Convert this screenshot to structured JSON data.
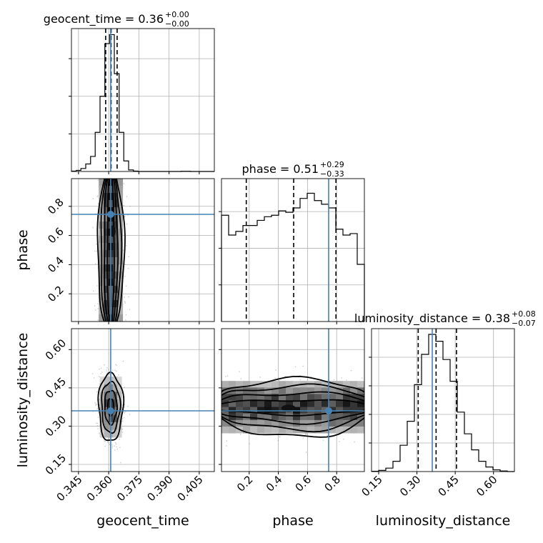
{
  "chart_data": {
    "type": "corner",
    "parameters": [
      "geocent_time",
      "phase",
      "luminosity_distance"
    ],
    "truths": {
      "geocent_time": 0.361,
      "phase": 0.745,
      "luminosity_distance": 0.36
    },
    "titles": [
      {
        "param": "geocent_time",
        "text": "geocent_time = 0.36",
        "sup": "+0.00",
        "sub": "−0.00"
      },
      {
        "param": "phase",
        "text": "phase = 0.51",
        "sup": "+0.29",
        "sub": "−0.33"
      },
      {
        "param": "luminosity_distance",
        "text": "luminosity_distance = 0.38",
        "sup": "+0.08",
        "sub": "−0.07"
      }
    ],
    "axes": {
      "geocent_time": {
        "range": [
          0.3415,
          0.4125
        ],
        "ticks": [
          "0.345",
          "0.360",
          "0.375",
          "0.390",
          "0.405"
        ]
      },
      "phase": {
        "range": [
          0.01,
          0.99
        ],
        "ticks": [
          "0.2",
          "0.4",
          "0.6",
          "0.8"
        ]
      },
      "luminosity_distance": {
        "range": [
          0.122,
          0.682
        ],
        "ticks": [
          "0.15",
          "0.30",
          "0.45",
          "0.60"
        ]
      }
    },
    "histograms": {
      "geocent_time": {
        "quantiles": [
          0.3585,
          0.3612,
          0.3642
        ],
        "edges": [
          0.3415,
          0.3439,
          0.3462,
          0.3486,
          0.351,
          0.3533,
          0.3557,
          0.3581,
          0.3604,
          0.3628,
          0.3652,
          0.3675,
          0.3699,
          0.3723,
          0.3746,
          0.377,
          0.3794,
          0.3817,
          0.3841,
          0.3865,
          0.3888,
          0.3912,
          0.3936,
          0.3959,
          0.3983,
          0.4007,
          0.403,
          0.4054,
          0.4078,
          0.4101,
          0.4125
        ],
        "counts": [
          0.5,
          1.5,
          4,
          10,
          20,
          52,
          100,
          170,
          182,
          130,
          52,
          14,
          2,
          0.5,
          0,
          0,
          0,
          0,
          0,
          0,
          0,
          0,
          0,
          0.3,
          0.3,
          0,
          0,
          0,
          0,
          0
        ],
        "max": 190
      },
      "phase": {
        "quantiles": [
          0.18,
          0.505,
          0.795
        ],
        "edges": [
          0.01,
          0.059,
          0.108,
          0.157,
          0.206,
          0.255,
          0.304,
          0.353,
          0.402,
          0.451,
          0.5,
          0.549,
          0.598,
          0.647,
          0.696,
          0.745,
          0.794,
          0.843,
          0.892,
          0.941,
          0.99
        ],
        "counts": [
          145,
          118,
          123,
          131,
          131,
          138,
          143,
          145,
          151,
          149,
          155,
          168,
          175,
          165,
          160,
          155,
          126,
          118,
          120,
          78
        ],
        "max": 195
      },
      "luminosity_distance": {
        "quantiles": [
          0.305,
          0.375,
          0.455
        ],
        "edges": [
          0.122,
          0.15,
          0.178,
          0.206,
          0.234,
          0.262,
          0.29,
          0.318,
          0.346,
          0.374,
          0.402,
          0.43,
          0.458,
          0.486,
          0.514,
          0.542,
          0.57,
          0.598,
          0.626,
          0.654,
          0.682
        ],
        "counts": [
          0.5,
          2,
          6,
          18,
          46,
          88,
          152,
          205,
          240,
          228,
          196,
          158,
          104,
          66,
          38,
          18,
          8,
          3,
          1,
          0
        ],
        "max": 250
      }
    },
    "joint": [
      {
        "x": "geocent_time",
        "y": "phase",
        "center": [
          0.361,
          0.5
        ],
        "spread": [
          0.0035,
          0.29
        ],
        "mode": [
          0.362,
          0.63
        ]
      },
      {
        "x": "geocent_time",
        "y": "luminosity_distance",
        "center": [
          0.361,
          0.375
        ],
        "spread": [
          0.0032,
          0.07
        ],
        "mode": [
          0.3615,
          0.36
        ]
      },
      {
        "x": "phase",
        "y": "luminosity_distance",
        "center": [
          0.5,
          0.375
        ],
        "spread": [
          0.29,
          0.06
        ],
        "mode": [
          0.47,
          0.37
        ]
      }
    ],
    "grid": true
  }
}
